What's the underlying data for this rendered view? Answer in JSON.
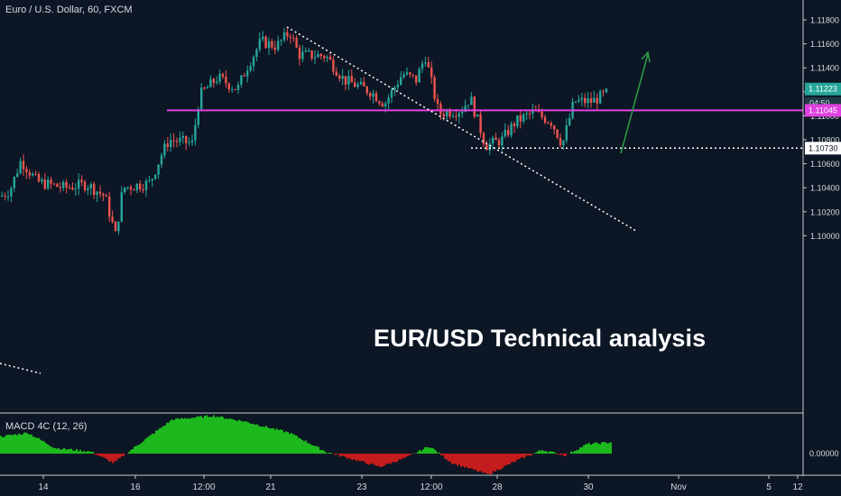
{
  "header": {
    "symbol_line": "Euro / U.S. Dollar, 60, FXCM"
  },
  "headline": "EUR/USD Technical analysis",
  "macd": {
    "label": "MACD 4C (12, 26)",
    "zero_label": "0.00000"
  },
  "price_axis": {
    "ticks": [
      "1.11800",
      "1.11600",
      "1.11400",
      "1.11200",
      "1.11000",
      "1.10800",
      "1.10600",
      "1.10400",
      "1.10200",
      "1.10000"
    ],
    "current_price": "1.11223",
    "countdown": "04:50",
    "resistance_label": "1.11045",
    "support_label": "1.10730"
  },
  "time_axis": {
    "labels": [
      "14",
      "16",
      "12:00",
      "21",
      "23",
      "12:00",
      "28",
      "12:00",
      "30",
      "Nov",
      "5",
      "12"
    ]
  },
  "colors": {
    "background": "#0c1624",
    "up": "#26a69a",
    "down": "#ef5350",
    "horizontal_level": "#e040e0",
    "current_price": "#26a69a",
    "macd_positive": "#1db81d",
    "macd_negative": "#c41c1c",
    "projection_arrow": "#2e9c48"
  },
  "chart_data": {
    "type": "candlestick",
    "title": "Euro / U.S. Dollar, 60, FXCM",
    "ylim": [
      1.0992,
      1.1194
    ],
    "levels": {
      "resistance": 1.11045,
      "support": 1.1073,
      "current": 1.11223
    },
    "close_path": [
      {
        "x": 0,
        "y": 1.1033
      },
      {
        "x": 10,
        "y": 1.1038
      },
      {
        "x": 22,
        "y": 1.1063
      },
      {
        "x": 40,
        "y": 1.1045
      },
      {
        "x": 70,
        "y": 1.104
      },
      {
        "x": 95,
        "y": 1.1043
      },
      {
        "x": 115,
        "y": 1.1033
      },
      {
        "x": 127,
        "y": 1.1
      },
      {
        "x": 135,
        "y": 1.104
      },
      {
        "x": 165,
        "y": 1.1044
      },
      {
        "x": 178,
        "y": 1.1068
      },
      {
        "x": 186,
        "y": 1.108
      },
      {
        "x": 212,
        "y": 1.1077
      },
      {
        "x": 220,
        "y": 1.1117
      },
      {
        "x": 240,
        "y": 1.1132
      },
      {
        "x": 262,
        "y": 1.1122
      },
      {
        "x": 272,
        "y": 1.114
      },
      {
        "x": 288,
        "y": 1.1162
      },
      {
        "x": 305,
        "y": 1.1158
      },
      {
        "x": 320,
        "y": 1.117
      },
      {
        "x": 330,
        "y": 1.1151
      },
      {
        "x": 360,
        "y": 1.115
      },
      {
        "x": 380,
        "y": 1.113
      },
      {
        "x": 410,
        "y": 1.112
      },
      {
        "x": 425,
        "y": 1.111
      },
      {
        "x": 445,
        "y": 1.1135
      },
      {
        "x": 460,
        "y": 1.113
      },
      {
        "x": 470,
        "y": 1.115
      },
      {
        "x": 485,
        "y": 1.1102
      },
      {
        "x": 510,
        "y": 1.1105
      },
      {
        "x": 520,
        "y": 1.1115
      },
      {
        "x": 537,
        "y": 1.1075
      },
      {
        "x": 555,
        "y": 1.108
      },
      {
        "x": 570,
        "y": 1.1095
      },
      {
        "x": 590,
        "y": 1.1103
      },
      {
        "x": 610,
        "y": 1.1095
      },
      {
        "x": 622,
        "y": 1.1076
      },
      {
        "x": 635,
        "y": 1.1112
      },
      {
        "x": 655,
        "y": 1.1112
      },
      {
        "x": 675,
        "y": 1.112
      }
    ],
    "macd_path": [
      {
        "x": 0,
        "v": 0.45
      },
      {
        "x": 30,
        "v": 0.55
      },
      {
        "x": 60,
        "v": 0.15
      },
      {
        "x": 100,
        "v": 0.05
      },
      {
        "x": 125,
        "v": -0.25
      },
      {
        "x": 150,
        "v": 0.2
      },
      {
        "x": 190,
        "v": 0.9
      },
      {
        "x": 235,
        "v": 1.0
      },
      {
        "x": 270,
        "v": 0.85
      },
      {
        "x": 320,
        "v": 0.55
      },
      {
        "x": 360,
        "v": 0.05
      },
      {
        "x": 420,
        "v": -0.35
      },
      {
        "x": 450,
        "v": -0.1
      },
      {
        "x": 475,
        "v": 0.2
      },
      {
        "x": 500,
        "v": -0.25
      },
      {
        "x": 540,
        "v": -0.55
      },
      {
        "x": 575,
        "v": -0.15
      },
      {
        "x": 600,
        "v": 0.1
      },
      {
        "x": 625,
        "v": -0.05
      },
      {
        "x": 650,
        "v": 0.25
      },
      {
        "x": 676,
        "v": 0.3
      }
    ]
  }
}
